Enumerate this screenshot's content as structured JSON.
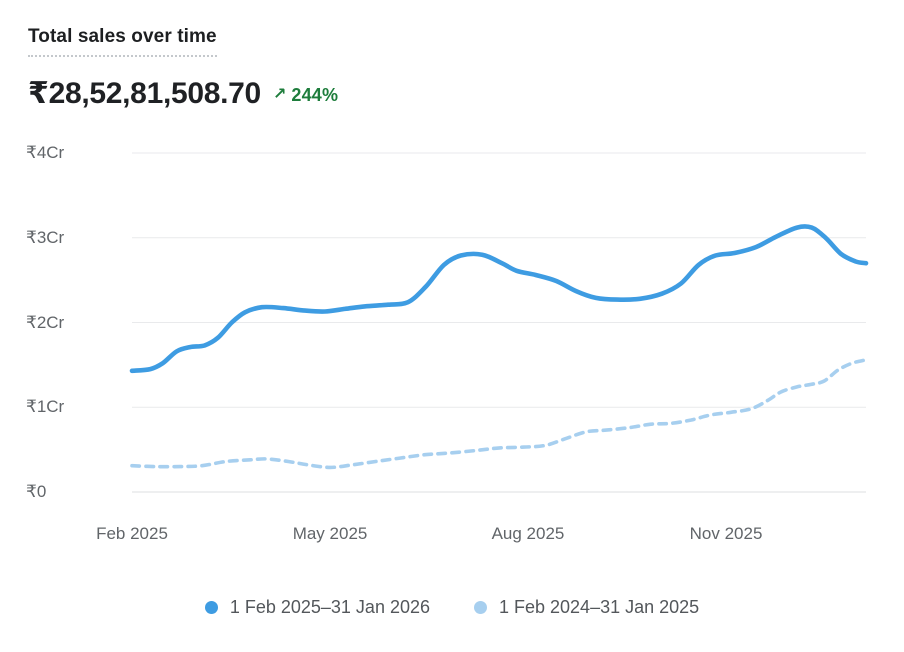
{
  "header": {
    "title": "Total sales over time",
    "value": "₹28,52,81,508.70",
    "change_arrow": "↗",
    "change_pct": "244%"
  },
  "colors": {
    "primary_line": "#3e9ce2",
    "comparison_line": "#a7cfef",
    "grid": "#e9eaec",
    "axis_text": "#616569",
    "change_green": "#1e7d3c"
  },
  "chart_data": {
    "type": "line",
    "title": "Total sales over time",
    "unit": "₹ crore (Cr)",
    "grid": "horizontal-only",
    "legend_position": "bottom-center",
    "y_axis": {
      "min": 0,
      "max": 4,
      "tick_values": [
        4,
        3,
        2,
        1,
        0
      ],
      "tick_labels": [
        "₹4Cr",
        "₹3Cr",
        "₹2Cr",
        "₹1Cr",
        "₹0"
      ]
    },
    "x_axis": {
      "ticks": [
        {
          "label": "Feb 2025",
          "t": 0.0
        },
        {
          "label": "May 2025",
          "t": 0.2698
        },
        {
          "label": "Aug 2025",
          "t": 0.5395
        },
        {
          "label": "Nov 2025",
          "t": 0.8093
        }
      ]
    },
    "series": [
      {
        "name": "1 Feb 2025–31 Jan 2026",
        "style": "solid",
        "color": "#3e9ce2",
        "points": [
          [
            0.0,
            1.43
          ],
          [
            0.025,
            1.45
          ],
          [
            0.042,
            1.52
          ],
          [
            0.061,
            1.66
          ],
          [
            0.079,
            1.71
          ],
          [
            0.099,
            1.73
          ],
          [
            0.117,
            1.82
          ],
          [
            0.136,
            2.0
          ],
          [
            0.154,
            2.12
          ],
          [
            0.177,
            2.18
          ],
          [
            0.206,
            2.17
          ],
          [
            0.236,
            2.14
          ],
          [
            0.263,
            2.13
          ],
          [
            0.29,
            2.16
          ],
          [
            0.317,
            2.19
          ],
          [
            0.349,
            2.21
          ],
          [
            0.376,
            2.24
          ],
          [
            0.4,
            2.42
          ],
          [
            0.425,
            2.68
          ],
          [
            0.448,
            2.79
          ],
          [
            0.477,
            2.8
          ],
          [
            0.504,
            2.7
          ],
          [
            0.524,
            2.61
          ],
          [
            0.55,
            2.56
          ],
          [
            0.578,
            2.49
          ],
          [
            0.605,
            2.37
          ],
          [
            0.632,
            2.29
          ],
          [
            0.661,
            2.27
          ],
          [
            0.692,
            2.28
          ],
          [
            0.722,
            2.34
          ],
          [
            0.748,
            2.46
          ],
          [
            0.772,
            2.68
          ],
          [
            0.795,
            2.79
          ],
          [
            0.821,
            2.82
          ],
          [
            0.85,
            2.89
          ],
          [
            0.877,
            3.01
          ],
          [
            0.906,
            3.12
          ],
          [
            0.926,
            3.12
          ],
          [
            0.945,
            3.0
          ],
          [
            0.966,
            2.81
          ],
          [
            0.986,
            2.72
          ],
          [
            1.0,
            2.7
          ]
        ]
      },
      {
        "name": "1 Feb 2024–31 Jan 2025",
        "style": "dashed",
        "color": "#a7cfef",
        "points": [
          [
            0.0,
            0.31
          ],
          [
            0.031,
            0.3
          ],
          [
            0.065,
            0.3
          ],
          [
            0.095,
            0.31
          ],
          [
            0.128,
            0.36
          ],
          [
            0.161,
            0.38
          ],
          [
            0.183,
            0.39
          ],
          [
            0.213,
            0.36
          ],
          [
            0.24,
            0.32
          ],
          [
            0.27,
            0.29
          ],
          [
            0.3,
            0.32
          ],
          [
            0.332,
            0.36
          ],
          [
            0.365,
            0.4
          ],
          [
            0.399,
            0.44
          ],
          [
            0.433,
            0.46
          ],
          [
            0.469,
            0.49
          ],
          [
            0.501,
            0.52
          ],
          [
            0.534,
            0.53
          ],
          [
            0.563,
            0.55
          ],
          [
            0.591,
            0.63
          ],
          [
            0.619,
            0.71
          ],
          [
            0.646,
            0.73
          ],
          [
            0.678,
            0.76
          ],
          [
            0.707,
            0.8
          ],
          [
            0.734,
            0.81
          ],
          [
            0.762,
            0.85
          ],
          [
            0.789,
            0.91
          ],
          [
            0.816,
            0.94
          ],
          [
            0.843,
            0.98
          ],
          [
            0.866,
            1.08
          ],
          [
            0.884,
            1.18
          ],
          [
            0.906,
            1.24
          ],
          [
            0.925,
            1.27
          ],
          [
            0.943,
            1.31
          ],
          [
            0.962,
            1.44
          ],
          [
            0.981,
            1.52
          ],
          [
            1.0,
            1.56
          ]
        ]
      }
    ]
  },
  "legend": {
    "items": [
      {
        "label": "1 Feb 2025–31 Jan 2026",
        "color": "#3e9ce2"
      },
      {
        "label": "1 Feb 2024–31 Jan 2025",
        "color": "#a7cfef"
      }
    ]
  }
}
